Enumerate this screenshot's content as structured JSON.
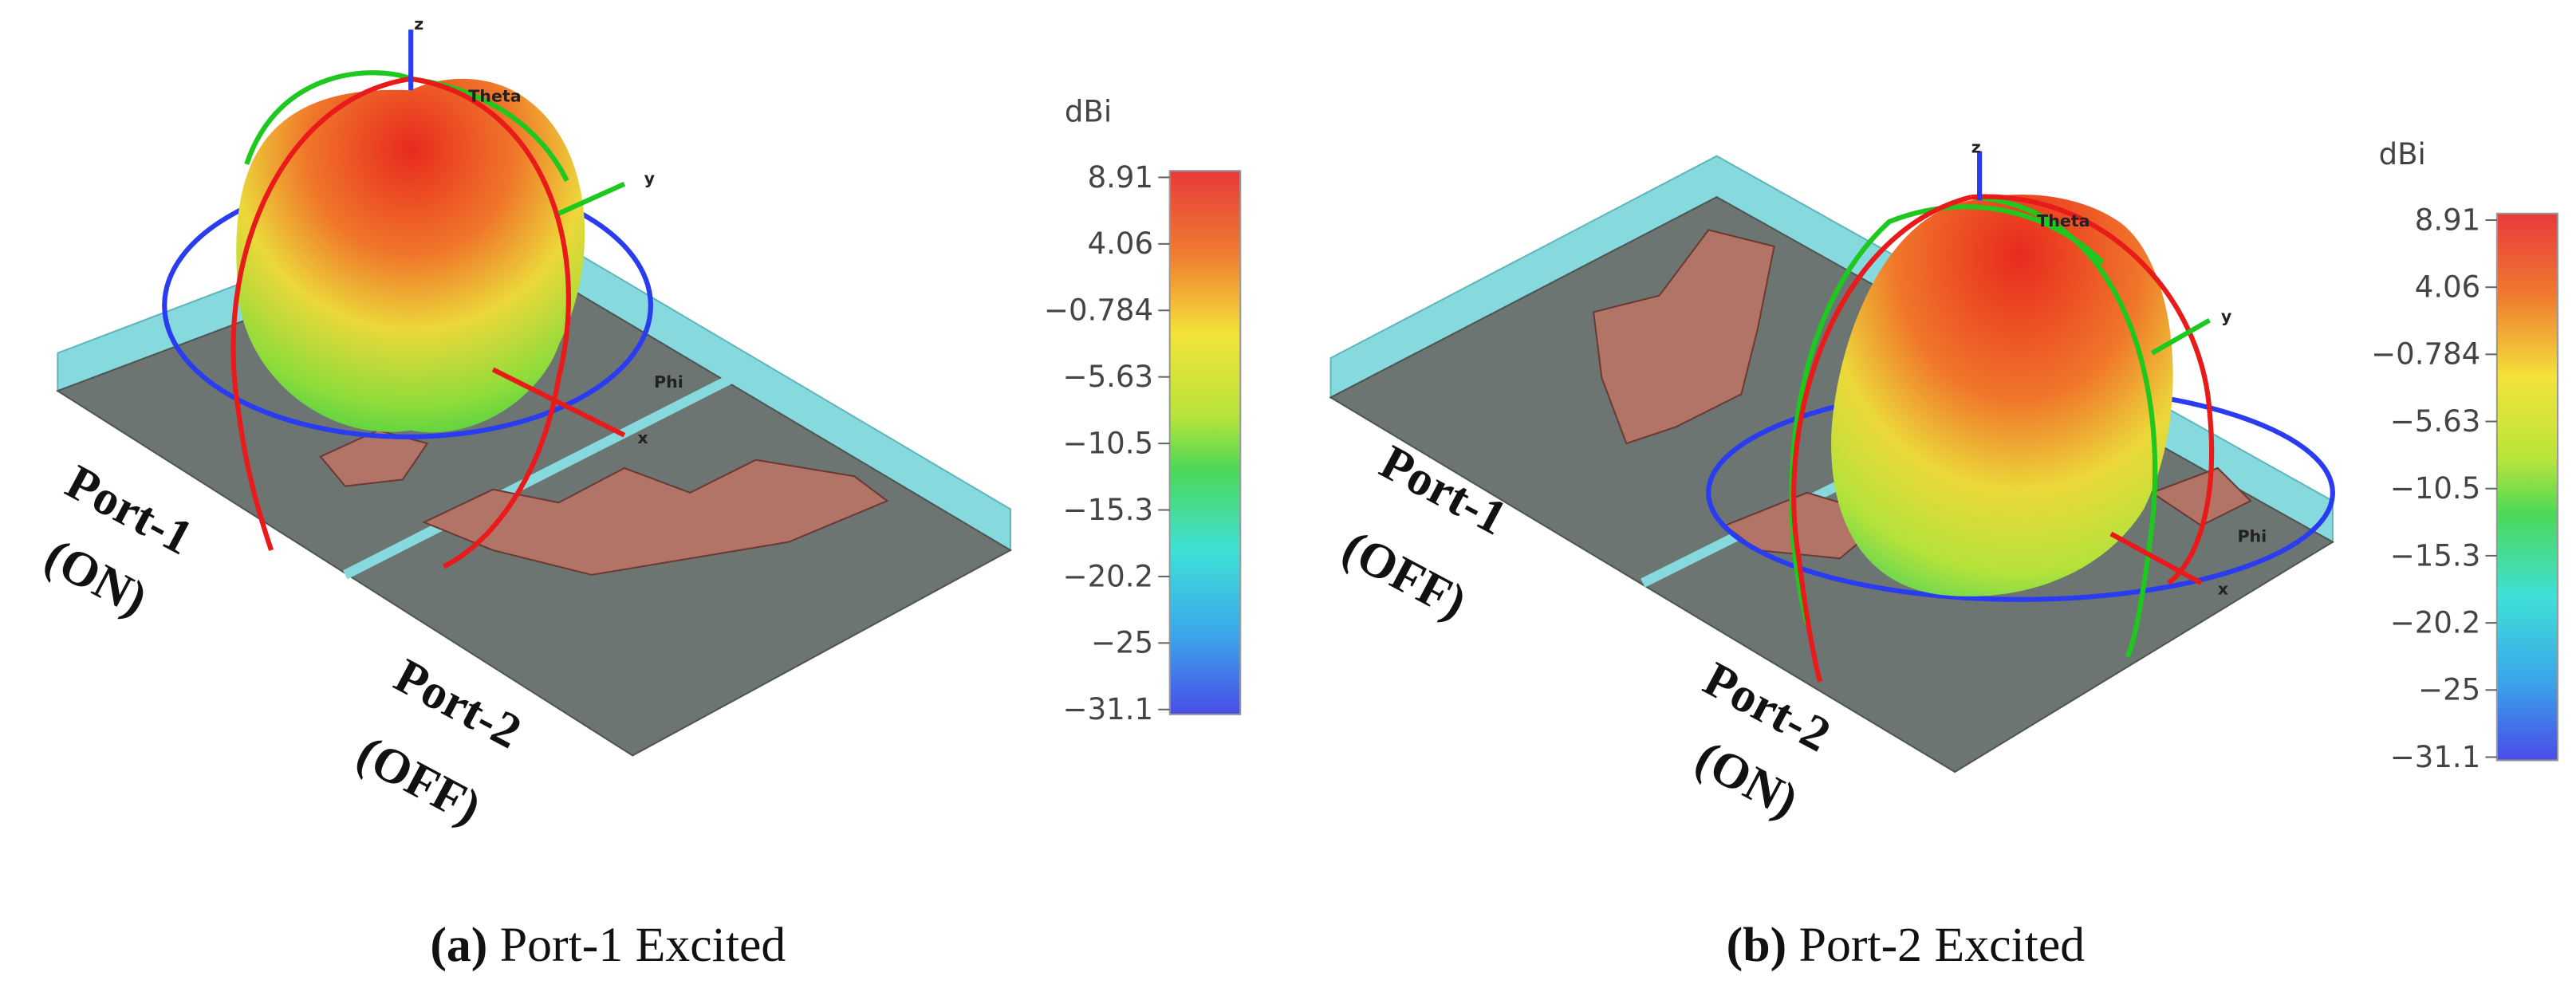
{
  "panels": [
    {
      "caption": {
        "label": "(a)",
        "text": "Port-1 Excited"
      },
      "ports": [
        {
          "name": "Port-1",
          "state": "(ON)"
        },
        {
          "name": "Port-2",
          "state": "(OFF)"
        }
      ],
      "axes": {
        "z": "z",
        "y": "y",
        "x": "x",
        "theta": "Theta",
        "phi": "Phi"
      },
      "colorbar": {
        "unit": "dBi",
        "ticks": [
          "8.91",
          "4.06",
          "−0.784",
          "−5.63",
          "−10.5",
          "−15.3",
          "−20.2",
          "−25",
          "−31.1"
        ]
      }
    },
    {
      "caption": {
        "label": "(b)",
        "text": "Port-2 Excited"
      },
      "ports": [
        {
          "name": "Port-1",
          "state": "(OFF)"
        },
        {
          "name": "Port-2",
          "state": "(ON)"
        }
      ],
      "axes": {
        "z": "z",
        "y": "y",
        "x": "x",
        "theta": "Theta",
        "phi": "Phi"
      },
      "colorbar": {
        "unit": "dBi",
        "ticks": [
          "8.91",
          "4.06",
          "−0.784",
          "−5.63",
          "−10.5",
          "−15.3",
          "−20.2",
          "−25",
          "−31.1"
        ]
      }
    }
  ]
}
